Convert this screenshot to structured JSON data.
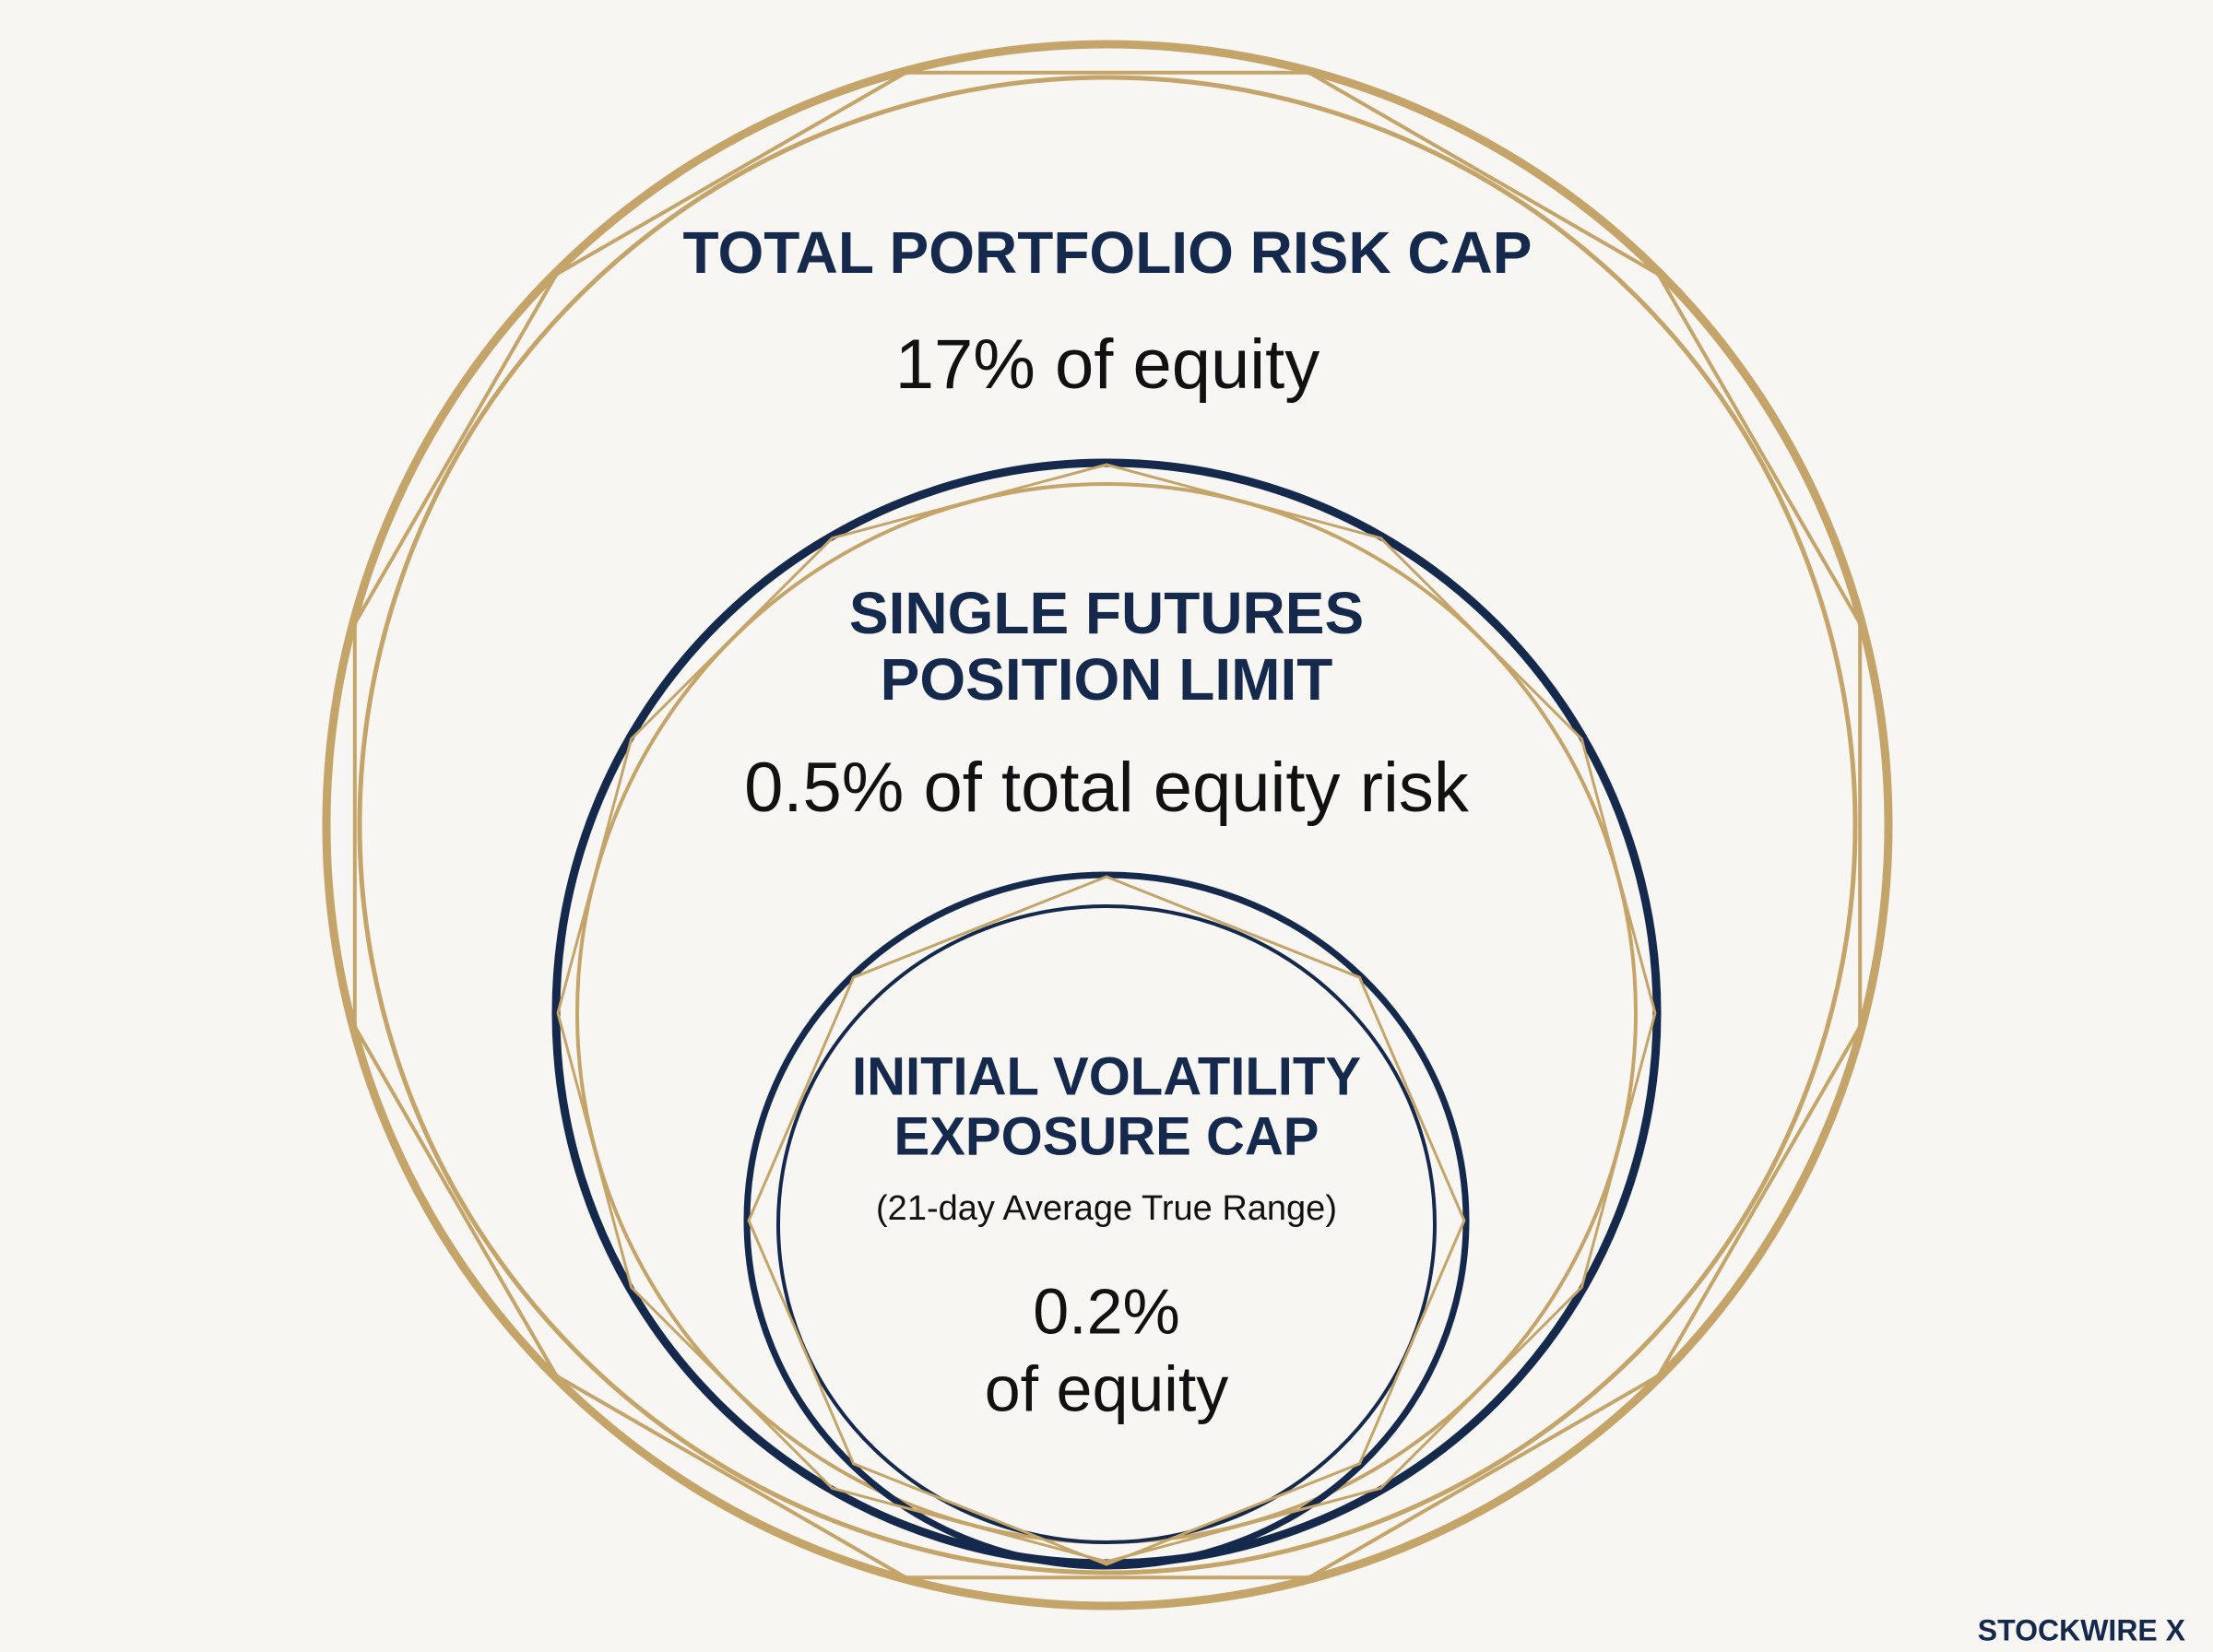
{
  "rings": [
    {
      "title_lines": [
        "TOTAL PORTFOLIO RISK CAP"
      ],
      "value_lines": [
        "17% of equity"
      ]
    },
    {
      "title_lines": [
        "SINGLE FUTURES",
        "POSITION LIMIT"
      ],
      "value_lines": [
        "0.5% of total equity risk"
      ]
    },
    {
      "title_lines": [
        "INITIAL VOLATILITY",
        "EXPOSURE CAP"
      ],
      "note": "(21-day Average True Range)",
      "value_lines": [
        "0.2%",
        "of equity"
      ]
    }
  ],
  "brand": "STOCKWIRE X"
}
